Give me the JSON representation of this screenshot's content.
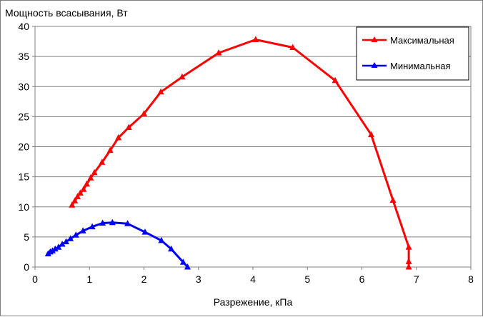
{
  "chart_data": {
    "type": "line",
    "title": "",
    "ylabel": "Мощность всасывания, Вт",
    "xlabel": "Разрежение, кПа",
    "xlim": [
      0,
      8
    ],
    "ylim": [
      0,
      40
    ],
    "xticks": [
      0,
      1,
      2,
      3,
      4,
      5,
      6,
      7,
      8
    ],
    "yticks": [
      0,
      5,
      10,
      15,
      20,
      25,
      30,
      35,
      40
    ],
    "grid": "horizontal",
    "legend": "top-right",
    "series": [
      {
        "name": "Максимальная",
        "color": "#ff0000",
        "marker": "triangle",
        "points": [
          [
            0.68,
            10.3
          ],
          [
            0.73,
            11.0
          ],
          [
            0.78,
            11.7
          ],
          [
            0.83,
            12.3
          ],
          [
            0.89,
            12.9
          ],
          [
            0.95,
            13.8
          ],
          [
            1.02,
            14.8
          ],
          [
            1.09,
            15.7
          ],
          [
            1.23,
            17.4
          ],
          [
            1.38,
            19.4
          ],
          [
            1.53,
            21.5
          ],
          [
            1.72,
            23.2
          ],
          [
            2.0,
            25.5
          ],
          [
            2.31,
            29.1
          ],
          [
            2.7,
            31.6
          ],
          [
            3.37,
            35.6
          ],
          [
            4.05,
            37.8
          ],
          [
            4.73,
            36.5
          ],
          [
            5.51,
            31.0
          ],
          [
            6.17,
            22.0
          ],
          [
            6.57,
            11.1
          ],
          [
            6.86,
            3.3
          ],
          [
            6.86,
            0.9
          ],
          [
            6.86,
            0.0
          ]
        ]
      },
      {
        "name": "Минимальная",
        "color": "#0000ff",
        "marker": "triangle",
        "points": [
          [
            0.24,
            2.2
          ],
          [
            0.28,
            2.5
          ],
          [
            0.32,
            2.7
          ],
          [
            0.37,
            3.0
          ],
          [
            0.43,
            3.3
          ],
          [
            0.5,
            3.8
          ],
          [
            0.57,
            4.2
          ],
          [
            0.65,
            4.7
          ],
          [
            0.75,
            5.3
          ],
          [
            0.88,
            6.0
          ],
          [
            1.05,
            6.7
          ],
          [
            1.24,
            7.3
          ],
          [
            1.42,
            7.4
          ],
          [
            1.7,
            7.2
          ],
          [
            2.02,
            5.8
          ],
          [
            2.32,
            4.4
          ],
          [
            2.5,
            3.0
          ],
          [
            2.72,
            0.8
          ],
          [
            2.8,
            0.0
          ]
        ]
      }
    ]
  }
}
